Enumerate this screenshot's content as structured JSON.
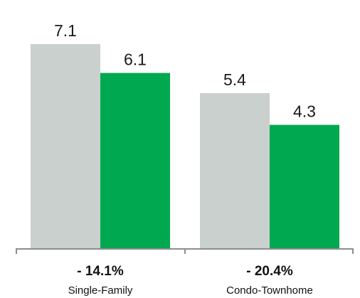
{
  "chart_data": {
    "type": "bar",
    "categories": [
      "Single-Family",
      "Condo-Townhome"
    ],
    "changes": [
      "- 14.1%",
      "- 20.4%"
    ],
    "series": [
      {
        "values": [
          7.1,
          5.4
        ],
        "labels": [
          "7.1",
          "5.4"
        ],
        "color": "#c9d0ce"
      },
      {
        "values": [
          6.1,
          4.3
        ],
        "labels": [
          "6.1",
          "4.3"
        ],
        "color": "#00a84f"
      }
    ],
    "ylim": [
      0,
      7.1
    ],
    "grid": false,
    "legend": "none",
    "axis_color": "#8a8f8d"
  }
}
